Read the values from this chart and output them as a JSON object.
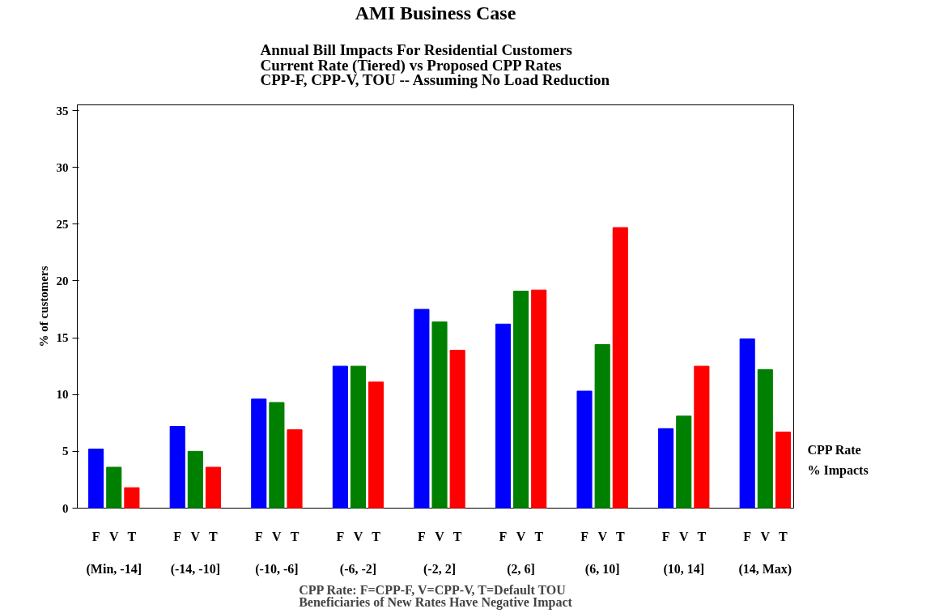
{
  "chart_data": {
    "type": "bar",
    "title": "AMI Business Case",
    "subtitle": "Annual Bill Impacts For Residential Customers\nCurrent Rate (Tiered) vs Proposed CPP Rates\nCPP-F, CPP-V, TOU -- Assuming No Load Reduction",
    "ylabel": "% of customers",
    "categories": [
      "(Min, -14]",
      "(-14, -10]",
      "(-10, -6]",
      "(-6, -2]",
      "(-2, 2]",
      "(2, 6]",
      "(6, 10]",
      "(10, 14]",
      "(14, Max)"
    ],
    "series": [
      {
        "name": "F",
        "color": "#0000ff",
        "values": [
          5.2,
          7.2,
          9.6,
          12.5,
          17.5,
          16.2,
          10.3,
          7.0,
          14.9
        ]
      },
      {
        "name": "V",
        "color": "#008000",
        "values": [
          3.6,
          5.0,
          9.3,
          12.5,
          16.4,
          19.1,
          14.4,
          8.1,
          12.2
        ]
      },
      {
        "name": "T",
        "color": "#ff0000",
        "values": [
          1.8,
          3.6,
          6.9,
          11.1,
          13.9,
          19.2,
          24.7,
          12.5,
          6.7
        ]
      }
    ],
    "ylim": [
      0,
      35.5
    ],
    "yticks": [
      0,
      5,
      10,
      15,
      20,
      25,
      30,
      35
    ],
    "grid": false,
    "annotations": [
      "CPP Rate",
      "% Impacts",
      "CPP Rate: F=CPP-F, V=CPP-V, T=Default TOU\nBeneficiaries of New Rates Have Negative Impact"
    ]
  }
}
